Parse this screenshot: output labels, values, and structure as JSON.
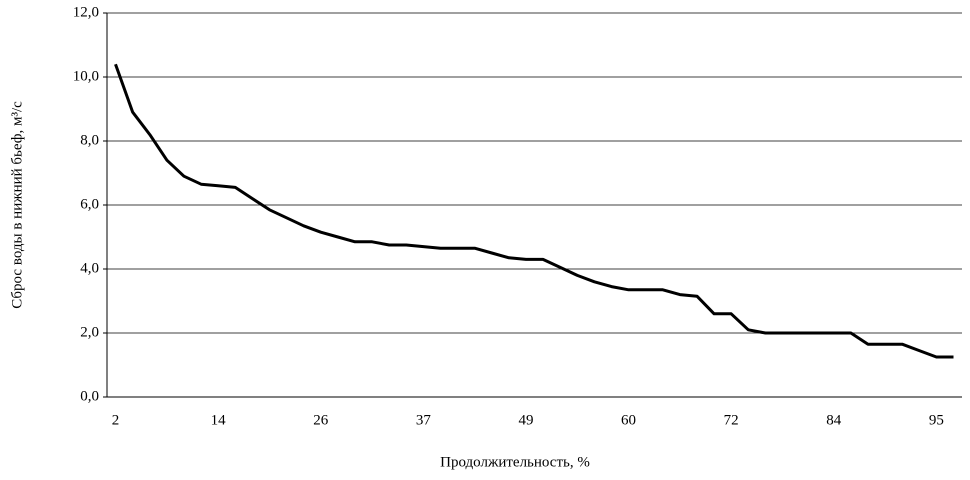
{
  "chart_data": {
    "type": "line",
    "x_label": "Продолжительность, %",
    "y_label": "Сброс воды в нижний бьеф, м³/с",
    "categories": [
      "2",
      null,
      null,
      null,
      null,
      null,
      "14",
      null,
      null,
      null,
      null,
      null,
      "26",
      null,
      null,
      null,
      null,
      null,
      "37",
      null,
      null,
      null,
      null,
      null,
      "49",
      null,
      null,
      null,
      null,
      null,
      "60",
      null,
      null,
      null,
      null,
      null,
      "72",
      null,
      null,
      null,
      null,
      null,
      "84",
      null,
      null,
      null,
      null,
      null,
      "95",
      null
    ],
    "series": [
      {
        "name": "Сброс",
        "color": "#000000",
        "values": [
          10.4,
          8.9,
          8.2,
          7.4,
          6.9,
          6.65,
          6.6,
          6.55,
          6.2,
          5.85,
          5.6,
          5.35,
          5.15,
          5.0,
          4.85,
          4.85,
          4.75,
          4.75,
          4.7,
          4.65,
          4.65,
          4.65,
          4.5,
          4.35,
          4.3,
          4.3,
          4.05,
          3.8,
          3.6,
          3.45,
          3.35,
          3.35,
          3.35,
          3.2,
          3.15,
          2.6,
          2.6,
          2.1,
          2.0,
          2.0,
          2.0,
          2.0,
          2.0,
          2.0,
          1.65,
          1.65,
          1.65,
          1.45,
          1.25,
          1.25
        ]
      }
    ],
    "ylim": [
      0,
      12
    ],
    "yticks": [
      {
        "value": 0,
        "label": "0,0"
      },
      {
        "value": 2,
        "label": "2,0"
      },
      {
        "value": 4,
        "label": "4,0"
      },
      {
        "value": 6,
        "label": "6,0"
      },
      {
        "value": 8,
        "label": "8,0"
      },
      {
        "value": 10,
        "label": "10,0"
      },
      {
        "value": 12,
        "label": "12,0"
      }
    ],
    "grid": true
  }
}
